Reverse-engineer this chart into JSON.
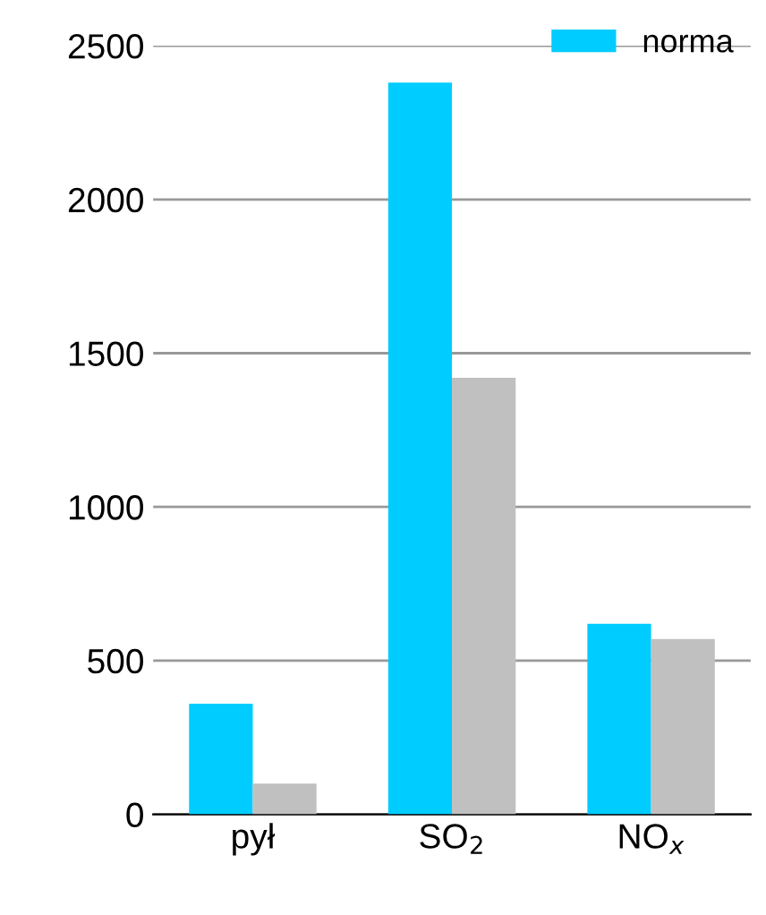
{
  "chart_data": {
    "type": "bar",
    "categories": [
      "pył",
      "SO$_{2}$",
      "NO$_{x}$"
    ],
    "series": [
      {
        "name": "norma",
        "color": "#00ccff",
        "values": [
          360,
          2380,
          620
        ]
      },
      {
        "color": "#c0c0c0",
        "values": [
          100,
          1420,
          570
        ]
      }
    ],
    "ylim": [
      0,
      2500
    ],
    "yticks": [
      0,
      500,
      1000,
      1500,
      2000,
      2500
    ],
    "grid": "y",
    "legend": "top right"
  }
}
